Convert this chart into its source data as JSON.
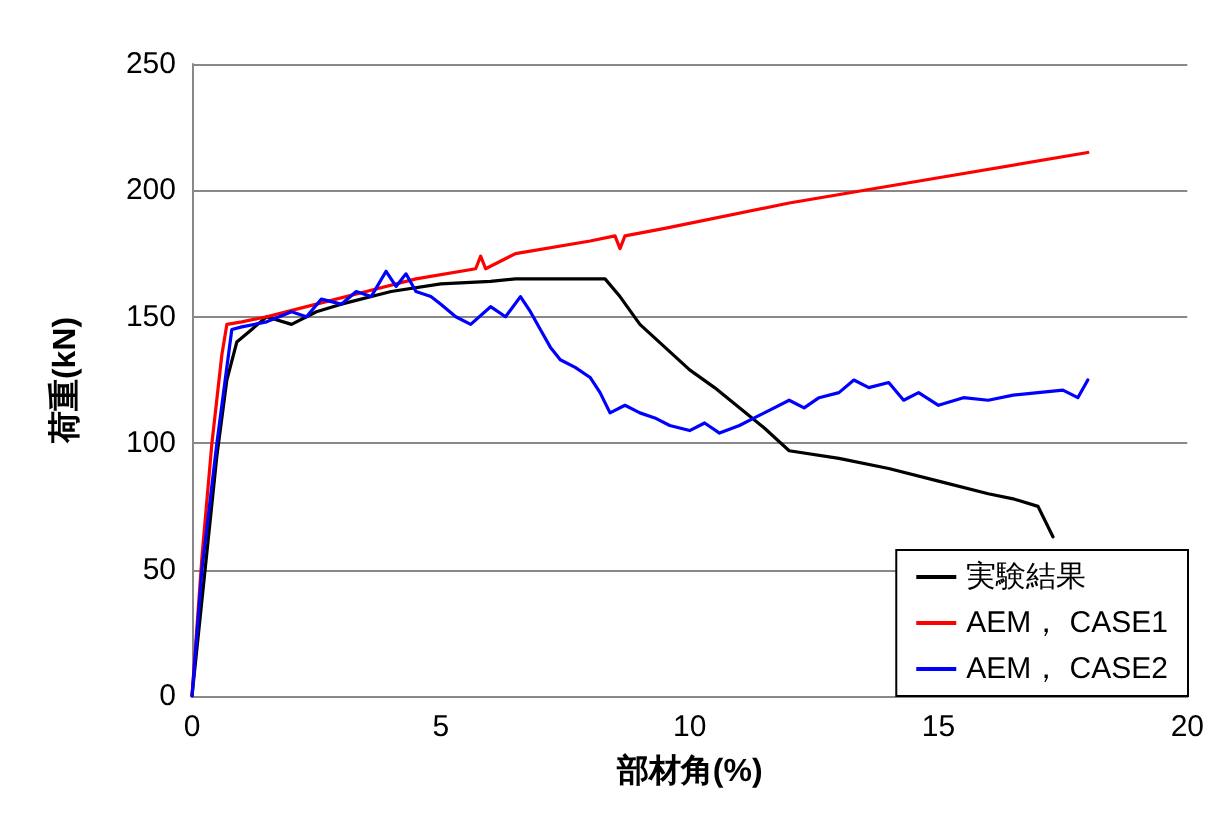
{
  "chart_data": {
    "type": "line",
    "xlabel": "部材角(%)",
    "ylabel": "荷重(kN)",
    "xlim": [
      0,
      20
    ],
    "xticks": [
      0,
      5,
      10,
      15,
      20
    ],
    "ylim": [
      0,
      250
    ],
    "yticks": [
      0,
      50,
      100,
      150,
      200,
      250
    ],
    "grid": "y",
    "legend": "bottom right",
    "marker": "none",
    "line_style": "solid",
    "series": [
      {
        "name": "実験結果",
        "color": "#000000",
        "x": [
          0,
          0.5,
          0.7,
          0.9,
          1.2,
          1.5,
          2,
          2.5,
          3,
          4,
          5,
          6,
          6.5,
          7.5,
          8.3,
          8.6,
          9,
          9.5,
          10,
          10.5,
          11,
          11.5,
          12,
          13,
          14,
          15,
          16,
          16.5,
          17,
          17.3
        ],
        "values": [
          0,
          95,
          125,
          140,
          145,
          150,
          147,
          152,
          155,
          160,
          163,
          164,
          165,
          165,
          165,
          158,
          147,
          138,
          129,
          122,
          114,
          106,
          97,
          94,
          90,
          85,
          80,
          78,
          75,
          63
        ]
      },
      {
        "name": "AEM， CASE1",
        "color": "#ff0000",
        "x": [
          0,
          0.2,
          0.4,
          0.6,
          0.7,
          1,
          1.5,
          2.5,
          3.5,
          4.5,
          5.7,
          5.8,
          5.9,
          6.5,
          8,
          8.5,
          8.6,
          8.7,
          9.5,
          12,
          15,
          18
        ],
        "values": [
          0,
          55,
          100,
          135,
          147,
          148,
          150,
          155,
          160,
          165,
          169,
          174,
          169,
          175,
          180,
          182,
          177,
          182,
          185,
          195,
          205,
          215
        ]
      },
      {
        "name": "AEM， CASE2",
        "color": "#0000ff",
        "x": [
          0,
          0.2,
          0.5,
          0.8,
          1,
          1.5,
          2,
          2.3,
          2.6,
          3,
          3.3,
          3.6,
          3.9,
          4.1,
          4.3,
          4.5,
          4.8,
          5,
          5.3,
          5.6,
          6,
          6.3,
          6.6,
          6.8,
          7,
          7.2,
          7.4,
          7.7,
          8,
          8.2,
          8.4,
          8.7,
          9,
          9.3,
          9.6,
          10,
          10.3,
          10.6,
          11,
          11.3,
          11.6,
          12,
          12.3,
          12.6,
          13,
          13.3,
          13.6,
          14,
          14.3,
          14.6,
          15,
          15.5,
          16,
          16.5,
          17,
          17.5,
          17.8,
          18
        ],
        "values": [
          0,
          50,
          100,
          145,
          146,
          148,
          152,
          150,
          157,
          155,
          160,
          158,
          168,
          162,
          167,
          160,
          158,
          155,
          150,
          147,
          154,
          150,
          158,
          152,
          145,
          138,
          133,
          130,
          126,
          120,
          112,
          115,
          112,
          110,
          107,
          105,
          108,
          104,
          107,
          110,
          113,
          117,
          114,
          118,
          120,
          125,
          122,
          124,
          117,
          120,
          115,
          118,
          117,
          119,
          120,
          121,
          118,
          125
        ]
      }
    ]
  }
}
